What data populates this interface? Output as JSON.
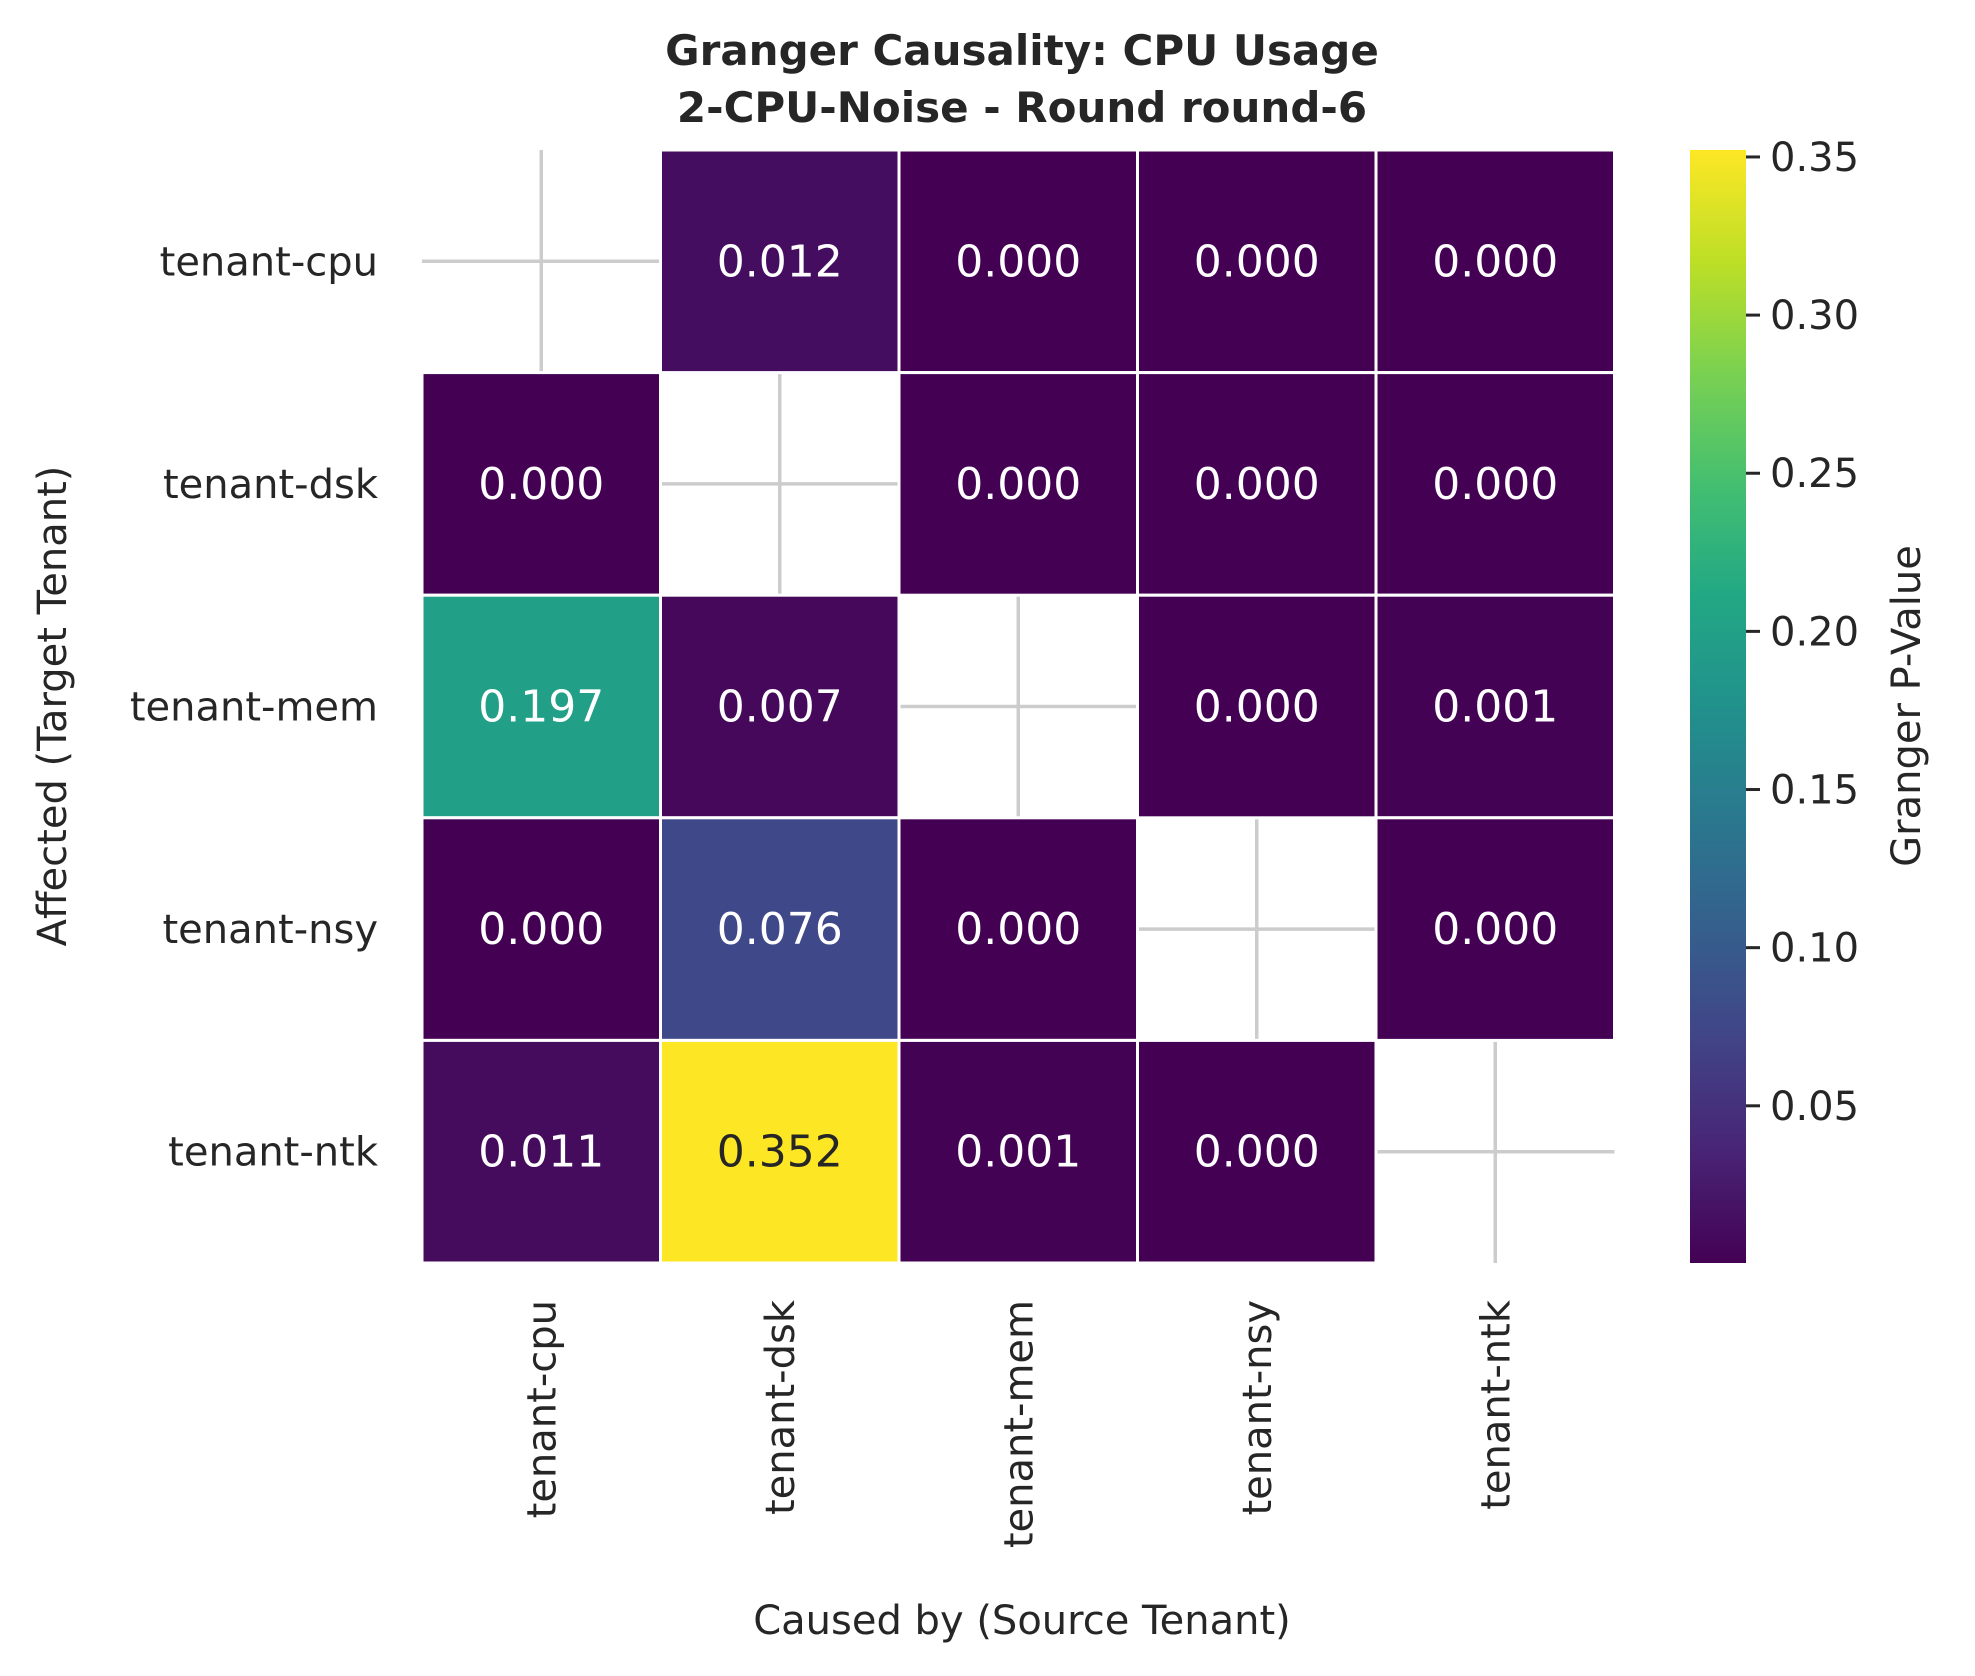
{
  "chart_data": {
    "type": "heatmap",
    "title": "Granger Causality: CPU Usage",
    "subtitle": "2-CPU-Noise - Round round-6",
    "xlabel": "Caused by (Source Tenant)",
    "ylabel": "Affected (Target Tenant)",
    "x_categories": [
      "tenant-cpu",
      "tenant-dsk",
      "tenant-mem",
      "tenant-nsy",
      "tenant-ntk"
    ],
    "y_categories": [
      "tenant-cpu",
      "tenant-dsk",
      "tenant-mem",
      "tenant-nsy",
      "tenant-ntk"
    ],
    "values": [
      [
        null,
        0.012,
        0.0,
        0.0,
        0.0
      ],
      [
        0.0,
        null,
        0.0,
        0.0,
        0.0
      ],
      [
        0.197,
        0.007,
        null,
        0.0,
        0.001
      ],
      [
        0.0,
        0.076,
        0.0,
        null,
        0.0
      ],
      [
        0.011,
        0.352,
        0.001,
        0.0,
        null
      ]
    ],
    "value_format": "3 decimals",
    "colormap": "viridis",
    "colorbar": {
      "label": "Granger P-Value",
      "range": [
        0.0003,
        0.3522
      ],
      "ticks": [
        "0.05",
        "0.10",
        "0.15",
        "0.20",
        "0.25",
        "0.30",
        "0.35"
      ]
    },
    "diagonal_masked": true,
    "grid": true
  },
  "colors": {
    "text_dark": "#262626",
    "grid": "#cccccc",
    "cell_border": "#ffffff"
  }
}
